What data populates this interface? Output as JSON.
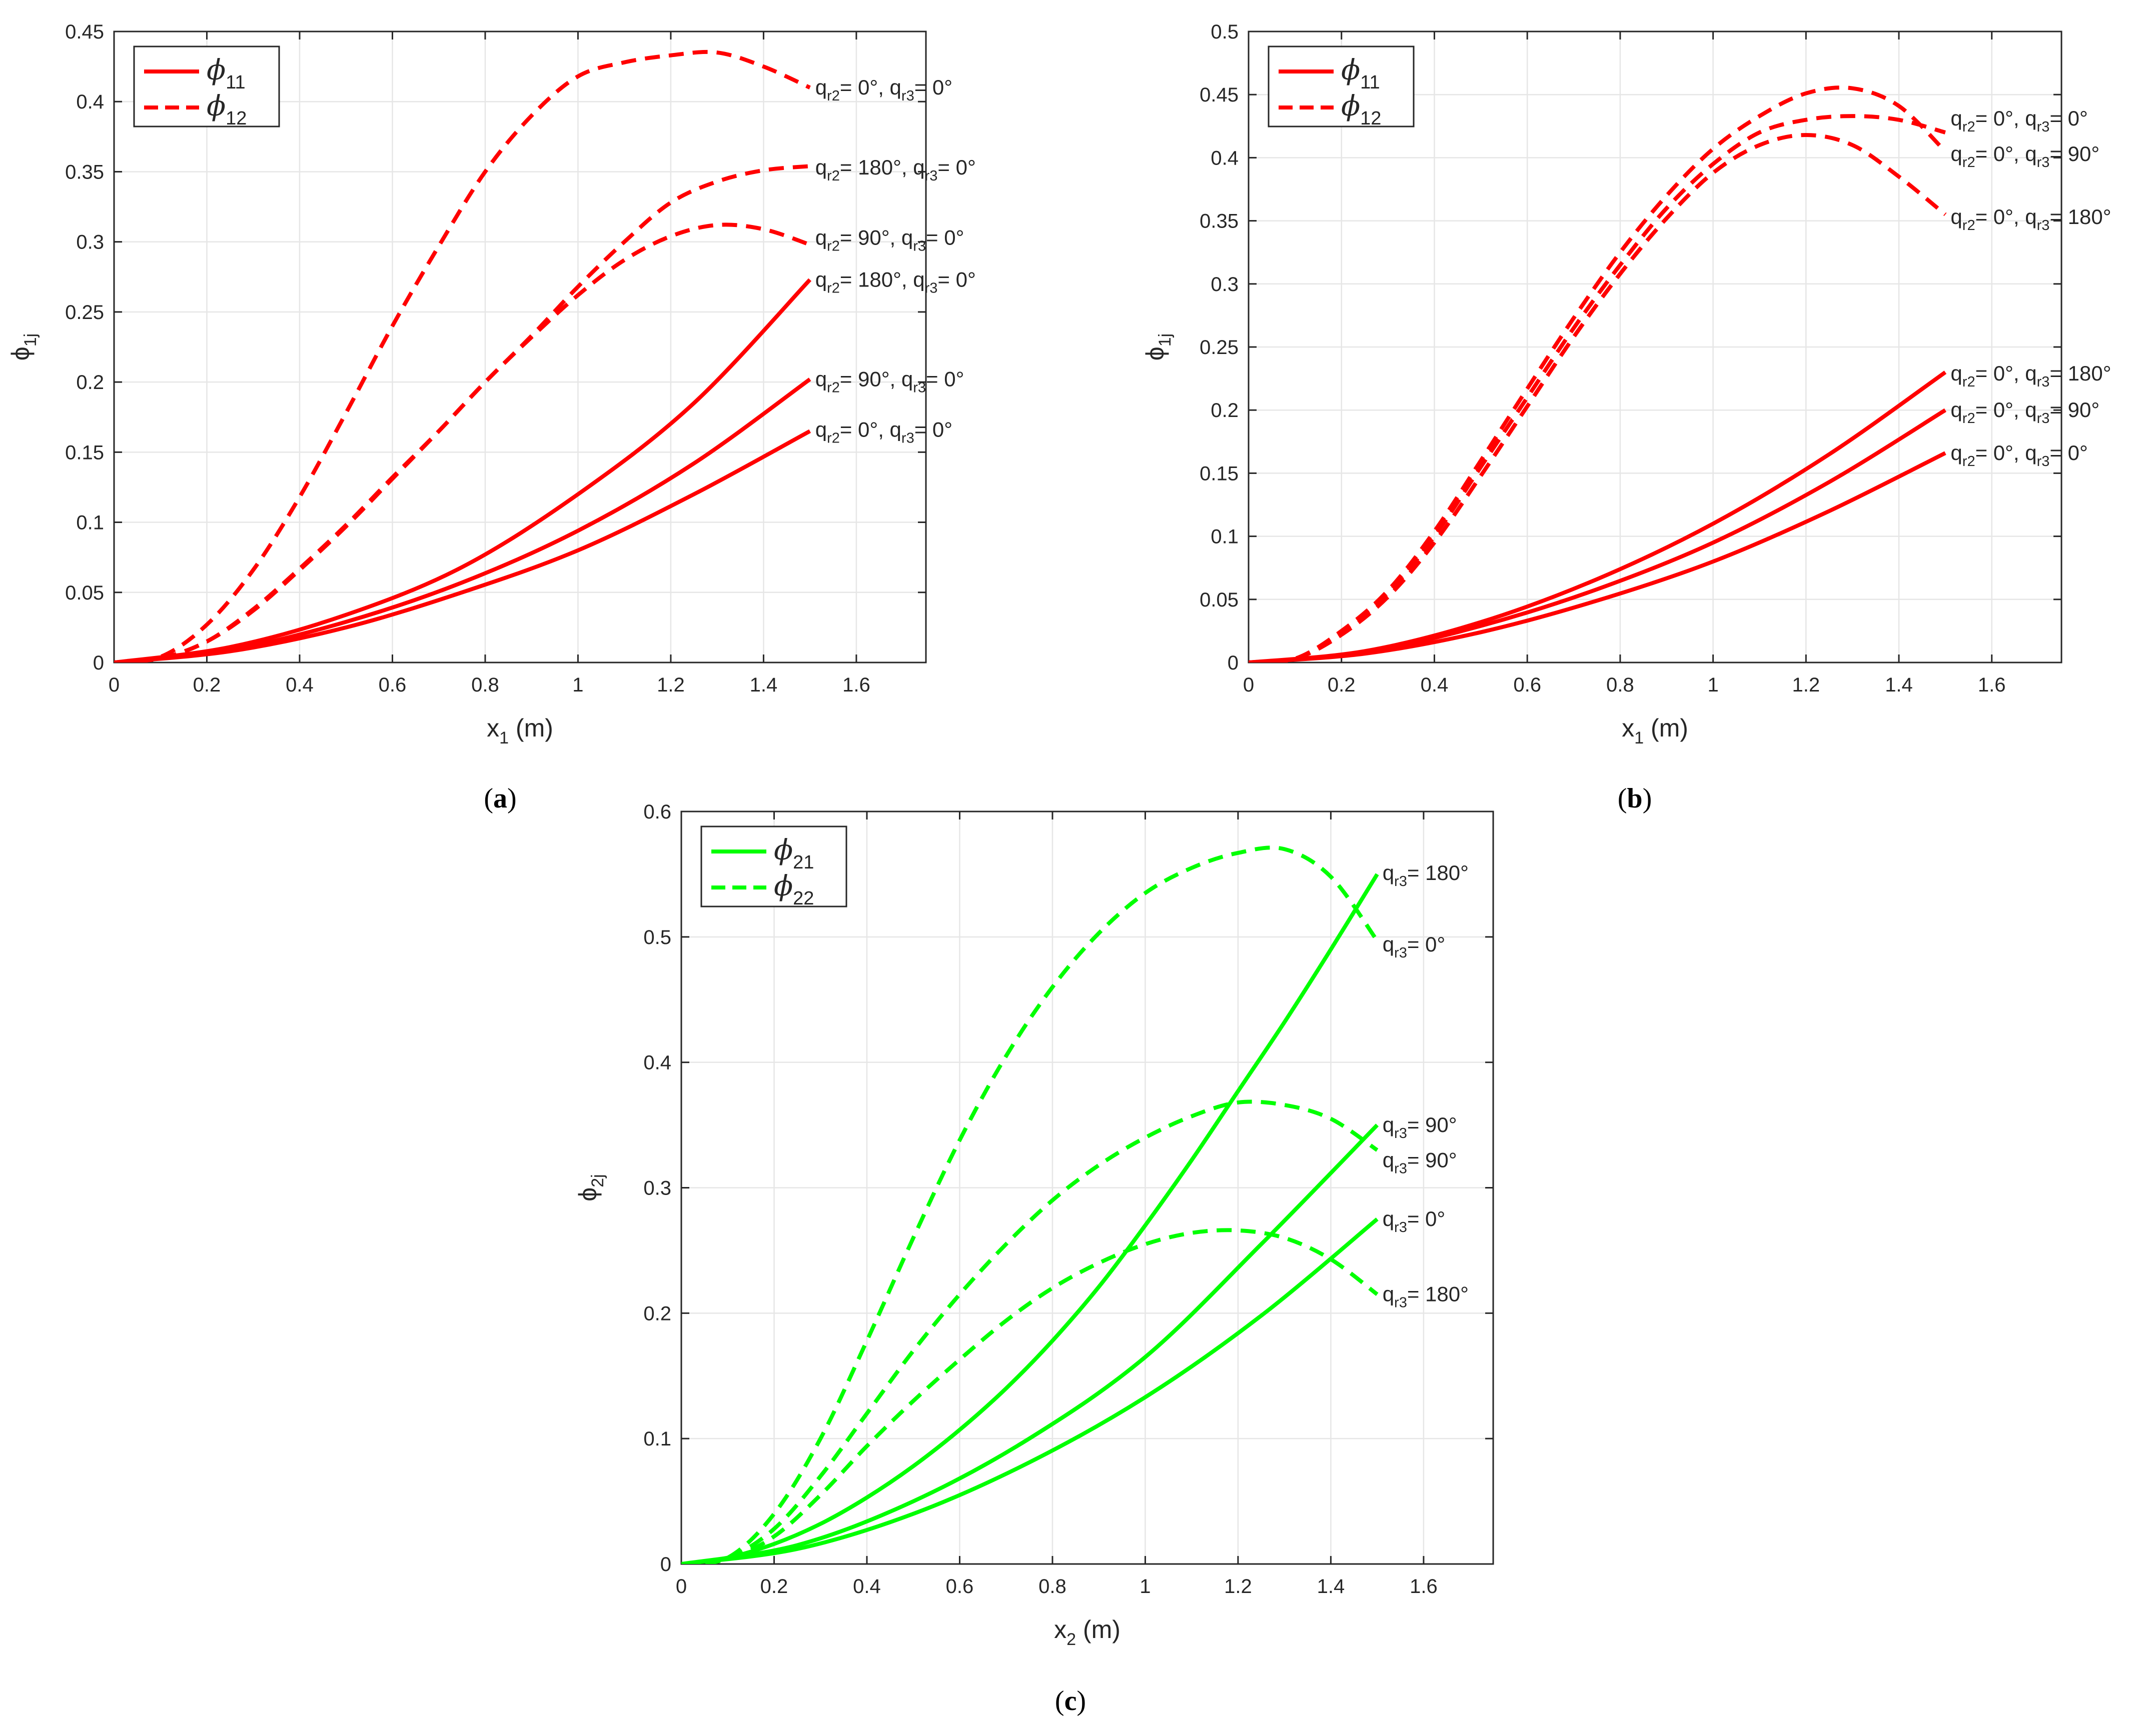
{
  "chart_data": [
    {
      "id": "a",
      "type": "line",
      "caption": "(a)",
      "xlabel": {
        "base": "x",
        "sub": "1",
        "unit": " (m)"
      },
      "ylabel": {
        "base": "ϕ",
        "sub": "1j"
      },
      "xlim": [
        0,
        1.75
      ],
      "ylim": [
        0,
        0.45
      ],
      "xticks": [
        0,
        0.2,
        0.4,
        0.6,
        0.8,
        1,
        1.2,
        1.4,
        1.6
      ],
      "xtick_labels": [
        "0",
        "0.2",
        "0.4",
        "0.6",
        "0.8",
        "1",
        "1.2",
        "1.4",
        "1.6"
      ],
      "yticks": [
        0,
        0.05,
        0.1,
        0.15,
        0.2,
        0.25,
        0.3,
        0.35,
        0.4,
        0.45
      ],
      "ytick_labels": [
        "0",
        "0.05",
        "0.1",
        "0.15",
        "0.2",
        "0.25",
        "0.3",
        "0.35",
        "0.4",
        "0.45"
      ],
      "grid": true,
      "color": "#ff0000",
      "legend": {
        "placement": "top-left",
        "entries": [
          {
            "symbol": "ϕ",
            "sub": "11",
            "style": "solid"
          },
          {
            "symbol": "ϕ",
            "sub": "12",
            "style": "dashed"
          }
        ]
      },
      "series": [
        {
          "name": "phi11 qr2=0, qr3=0",
          "style": "solid",
          "x": [
            0,
            0.25,
            0.5,
            0.75,
            1.0,
            1.25,
            1.5
          ],
          "y": [
            0,
            0.008,
            0.025,
            0.05,
            0.08,
            0.12,
            0.165
          ]
        },
        {
          "name": "phi11 qr2=90, qr3=0",
          "style": "solid",
          "x": [
            0,
            0.25,
            0.5,
            0.75,
            1.0,
            1.25,
            1.5
          ],
          "y": [
            0,
            0.009,
            0.029,
            0.057,
            0.094,
            0.142,
            0.202
          ]
        },
        {
          "name": "phi11 qr2=180, qr3=0",
          "style": "solid",
          "x": [
            0,
            0.25,
            0.5,
            0.75,
            1.0,
            1.25,
            1.5
          ],
          "y": [
            0,
            0.011,
            0.034,
            0.068,
            0.12,
            0.185,
            0.273
          ]
        },
        {
          "name": "phi12 qr2=0, qr3=0",
          "style": "dashed",
          "x": [
            0,
            0.1,
            0.2,
            0.3,
            0.4,
            0.5,
            0.6,
            0.7,
            0.8,
            0.9,
            1.0,
            1.1,
            1.2,
            1.3,
            1.4,
            1.5
          ],
          "y": [
            0,
            0.004,
            0.027,
            0.066,
            0.118,
            0.178,
            0.24,
            0.297,
            0.35,
            0.39,
            0.418,
            0.428,
            0.433,
            0.435,
            0.425,
            0.41
          ]
        },
        {
          "name": "phi12 qr2=180, qr3=0",
          "style": "dashed",
          "x": [
            0,
            0.1,
            0.2,
            0.3,
            0.4,
            0.5,
            0.6,
            0.7,
            0.8,
            0.9,
            1.0,
            1.1,
            1.2,
            1.3,
            1.4,
            1.5
          ],
          "y": [
            0,
            0.003,
            0.015,
            0.038,
            0.067,
            0.098,
            0.132,
            0.165,
            0.2,
            0.233,
            0.268,
            0.3,
            0.328,
            0.343,
            0.351,
            0.354
          ]
        },
        {
          "name": "phi12 qr2=90, qr3=0",
          "style": "dashed",
          "x": [
            0,
            0.1,
            0.2,
            0.3,
            0.4,
            0.5,
            0.6,
            0.7,
            0.8,
            0.9,
            1.0,
            1.1,
            1.2,
            1.3,
            1.4,
            1.5
          ],
          "y": [
            0,
            0.003,
            0.015,
            0.037,
            0.066,
            0.097,
            0.131,
            0.165,
            0.2,
            0.232,
            0.262,
            0.287,
            0.304,
            0.312,
            0.309,
            0.298
          ]
        }
      ],
      "annotations": [
        {
          "parts": [
            [
              "q",
              "r2",
              "= 0°, "
            ],
            [
              "q",
              "r3",
              "= 0°"
            ]
          ],
          "x": 1.52,
          "y": 0.41
        },
        {
          "parts": [
            [
              "q",
              "r2",
              "= 180°, "
            ],
            [
              "q",
              "r3",
              "= 0°"
            ]
          ],
          "x": 1.52,
          "y": 0.353
        },
        {
          "parts": [
            [
              "q",
              "r2",
              "= 90°, "
            ],
            [
              "q",
              "r3",
              "= 0°"
            ]
          ],
          "x": 1.52,
          "y": 0.303
        },
        {
          "parts": [
            [
              "q",
              "r2",
              "= 180°, "
            ],
            [
              "q",
              "r3",
              "= 0°"
            ]
          ],
          "x": 1.52,
          "y": 0.273
        },
        {
          "parts": [
            [
              "q",
              "r2",
              "= 90°, "
            ],
            [
              "q",
              "r3",
              "= 0°"
            ]
          ],
          "x": 1.52,
          "y": 0.202
        },
        {
          "parts": [
            [
              "q",
              "r2",
              "= 0°, "
            ],
            [
              "q",
              "r3",
              "= 0°"
            ]
          ],
          "x": 1.52,
          "y": 0.166
        }
      ]
    },
    {
      "id": "b",
      "type": "line",
      "caption": "(b)",
      "xlabel": {
        "base": "x",
        "sub": "1",
        "unit": " (m)"
      },
      "ylabel": {
        "base": "ϕ",
        "sub": "1j"
      },
      "xlim": [
        0,
        1.75
      ],
      "ylim": [
        0,
        0.5
      ],
      "xticks": [
        0,
        0.2,
        0.4,
        0.6,
        0.8,
        1,
        1.2,
        1.4,
        1.6
      ],
      "xtick_labels": [
        "0",
        "0.2",
        "0.4",
        "0.6",
        "0.8",
        "1",
        "1.2",
        "1.4",
        "1.6"
      ],
      "yticks": [
        0,
        0.05,
        0.1,
        0.15,
        0.2,
        0.25,
        0.3,
        0.35,
        0.4,
        0.45,
        0.5
      ],
      "ytick_labels": [
        "0",
        "0.05",
        "0.1",
        "0.15",
        "0.2",
        "0.25",
        "0.3",
        "0.35",
        "0.4",
        "0.45",
        "0.5"
      ],
      "grid": true,
      "color": "#ff0000",
      "legend": {
        "placement": "top-left",
        "entries": [
          {
            "symbol": "ϕ",
            "sub": "11",
            "style": "solid"
          },
          {
            "symbol": "ϕ",
            "sub": "12",
            "style": "dashed"
          }
        ]
      },
      "series": [
        {
          "name": "phi11 qr2=0, qr3=0",
          "style": "solid",
          "x": [
            0,
            0.25,
            0.5,
            0.75,
            1.0,
            1.25,
            1.5
          ],
          "y": [
            0,
            0.007,
            0.024,
            0.049,
            0.08,
            0.12,
            0.166
          ]
        },
        {
          "name": "phi11 qr2=0, qr3=90",
          "style": "solid",
          "x": [
            0,
            0.25,
            0.5,
            0.75,
            1.0,
            1.25,
            1.5
          ],
          "y": [
            0,
            0.008,
            0.029,
            0.058,
            0.095,
            0.143,
            0.2
          ]
        },
        {
          "name": "phi11 qr2=0, qr3=180",
          "style": "solid",
          "x": [
            0,
            0.25,
            0.5,
            0.75,
            1.0,
            1.25,
            1.5
          ],
          "y": [
            0,
            0.009,
            0.032,
            0.066,
            0.11,
            0.165,
            0.23
          ]
        },
        {
          "name": "phi12 qr2=0, qr3=0",
          "style": "dashed",
          "x": [
            0,
            0.1,
            0.2,
            0.3,
            0.4,
            0.5,
            0.6,
            0.7,
            0.8,
            0.9,
            1.0,
            1.1,
            1.2,
            1.3,
            1.4,
            1.5
          ],
          "y": [
            0,
            0.003,
            0.024,
            0.055,
            0.1,
            0.155,
            0.21,
            0.265,
            0.315,
            0.36,
            0.395,
            0.42,
            0.43,
            0.433,
            0.43,
            0.42
          ]
        },
        {
          "name": "phi12 qr2=0, qr3=90",
          "style": "dashed",
          "x": [
            0,
            0.1,
            0.2,
            0.3,
            0.4,
            0.5,
            0.6,
            0.7,
            0.8,
            0.9,
            1.0,
            1.1,
            1.2,
            1.3,
            1.4,
            1.5
          ],
          "y": [
            0,
            0.003,
            0.025,
            0.057,
            0.104,
            0.16,
            0.217,
            0.273,
            0.325,
            0.37,
            0.407,
            0.433,
            0.451,
            0.455,
            0.441,
            0.405
          ]
        },
        {
          "name": "phi12 qr2=0, qr3=180",
          "style": "dashed",
          "x": [
            0,
            0.1,
            0.2,
            0.3,
            0.4,
            0.5,
            0.6,
            0.7,
            0.8,
            0.9,
            1.0,
            1.1,
            1.2,
            1.3,
            1.4,
            1.5
          ],
          "y": [
            0,
            0.003,
            0.022,
            0.052,
            0.095,
            0.148,
            0.203,
            0.258,
            0.308,
            0.352,
            0.388,
            0.41,
            0.418,
            0.41,
            0.385,
            0.355
          ]
        }
      ],
      "annotations": [
        {
          "parts": [
            [
              "q",
              "r2",
              "= 0°, "
            ],
            [
              "q",
              "r3",
              "= 0°"
            ]
          ],
          "x": 1.52,
          "y": 0.431
        },
        {
          "parts": [
            [
              "q",
              "r2",
              "= 0°, "
            ],
            [
              "q",
              "r3",
              "= 90°"
            ]
          ],
          "x": 1.52,
          "y": 0.403
        },
        {
          "parts": [
            [
              "q",
              "r2",
              "= 0°, "
            ],
            [
              "q",
              "r3",
              "= 180°"
            ]
          ],
          "x": 1.52,
          "y": 0.353
        },
        {
          "parts": [
            [
              "q",
              "r2",
              "= 0°, "
            ],
            [
              "q",
              "r3",
              "= 180°"
            ]
          ],
          "x": 1.52,
          "y": 0.229
        },
        {
          "parts": [
            [
              "q",
              "r2",
              "= 0°, "
            ],
            [
              "q",
              "r3",
              "= 90°"
            ]
          ],
          "x": 1.52,
          "y": 0.2
        },
        {
          "parts": [
            [
              "q",
              "r2",
              "= 0°, "
            ],
            [
              "q",
              "r3",
              "= 0°"
            ]
          ],
          "x": 1.52,
          "y": 0.166
        }
      ]
    },
    {
      "id": "c",
      "type": "line",
      "caption": "(c)",
      "xlabel": {
        "base": "x",
        "sub": "2",
        "unit": " (m)"
      },
      "ylabel": {
        "base": "ϕ",
        "sub": "2j"
      },
      "xlim": [
        0,
        1.75
      ],
      "ylim": [
        0,
        0.6
      ],
      "xticks": [
        0,
        0.2,
        0.4,
        0.6,
        0.8,
        1,
        1.2,
        1.4,
        1.6
      ],
      "xtick_labels": [
        "0",
        "0.2",
        "0.4",
        "0.6",
        "0.8",
        "1",
        "1.2",
        "1.4",
        "1.6"
      ],
      "yticks": [
        0,
        0.1,
        0.2,
        0.3,
        0.4,
        0.5,
        0.6
      ],
      "ytick_labels": [
        "0",
        "0.1",
        "0.2",
        "0.3",
        "0.4",
        "0.5",
        "0.6"
      ],
      "grid": true,
      "color": "#00ff00",
      "legend": {
        "placement": "top-left",
        "entries": [
          {
            "symbol": "ϕ",
            "sub": "21",
            "style": "solid"
          },
          {
            "symbol": "ϕ",
            "sub": "22",
            "style": "dashed"
          }
        ]
      },
      "series": [
        {
          "name": "phi21 qr3=180",
          "style": "solid",
          "x": [
            0,
            0.1,
            0.2,
            0.3,
            0.4,
            0.5,
            0.6,
            0.7,
            0.8,
            0.9,
            1.0,
            1.1,
            1.2,
            1.3,
            1.4,
            1.5
          ],
          "y": [
            0,
            0.005,
            0.016,
            0.032,
            0.053,
            0.078,
            0.107,
            0.14,
            0.178,
            0.221,
            0.27,
            0.322,
            0.377,
            0.432,
            0.49,
            0.55
          ]
        },
        {
          "name": "phi21 qr3=90",
          "style": "solid",
          "x": [
            0,
            0.25,
            0.5,
            0.75,
            1.0,
            1.25,
            1.5
          ],
          "y": [
            0,
            0.015,
            0.05,
            0.1,
            0.165,
            0.255,
            0.35
          ]
        },
        {
          "name": "phi21 qr3=0",
          "style": "solid",
          "x": [
            0,
            0.25,
            0.5,
            0.75,
            1.0,
            1.25,
            1.5
          ],
          "y": [
            0,
            0.012,
            0.04,
            0.081,
            0.133,
            0.198,
            0.275
          ]
        },
        {
          "name": "phi22 qr3=0",
          "style": "dashed",
          "x": [
            0,
            0.1,
            0.2,
            0.3,
            0.4,
            0.5,
            0.6,
            0.7,
            0.8,
            0.9,
            1.0,
            1.1,
            1.2,
            1.3,
            1.4,
            1.5
          ],
          "y": [
            0,
            0.005,
            0.04,
            0.1,
            0.178,
            0.26,
            0.338,
            0.405,
            0.46,
            0.503,
            0.535,
            0.555,
            0.567,
            0.57,
            0.548,
            0.497
          ]
        },
        {
          "name": "phi22 qr3=90",
          "style": "dashed",
          "x": [
            0,
            0.1,
            0.2,
            0.3,
            0.4,
            0.5,
            0.6,
            0.7,
            0.8,
            0.9,
            1.0,
            1.1,
            1.2,
            1.3,
            1.4,
            1.5
          ],
          "y": [
            0,
            0.005,
            0.028,
            0.07,
            0.12,
            0.17,
            0.215,
            0.255,
            0.29,
            0.318,
            0.34,
            0.357,
            0.368,
            0.366,
            0.355,
            0.33
          ]
        },
        {
          "name": "phi22 qr3=180",
          "style": "dashed",
          "x": [
            0,
            0.1,
            0.2,
            0.3,
            0.4,
            0.5,
            0.6,
            0.7,
            0.8,
            0.9,
            1.0,
            1.1,
            1.2,
            1.3,
            1.4,
            1.5
          ],
          "y": [
            0,
            0.004,
            0.022,
            0.055,
            0.094,
            0.13,
            0.163,
            0.194,
            0.22,
            0.24,
            0.255,
            0.264,
            0.266,
            0.26,
            0.243,
            0.215
          ]
        }
      ],
      "annotations": [
        {
          "parts": [
            [
              "q",
              "r3",
              "= 180°"
            ]
          ],
          "x": 1.52,
          "y": 0.551
        },
        {
          "parts": [
            [
              "q",
              "r3",
              "= 0°"
            ]
          ],
          "x": 1.52,
          "y": 0.494
        },
        {
          "parts": [
            [
              "q",
              "r3",
              "= 90°"
            ]
          ],
          "x": 1.52,
          "y": 0.35
        },
        {
          "parts": [
            [
              "q",
              "r3",
              "= 90°"
            ]
          ],
          "x": 1.52,
          "y": 0.322
        },
        {
          "parts": [
            [
              "q",
              "r3",
              "= 0°"
            ]
          ],
          "x": 1.52,
          "y": 0.275
        },
        {
          "parts": [
            [
              "q",
              "r3",
              "= 180°"
            ]
          ],
          "x": 1.52,
          "y": 0.215
        }
      ]
    }
  ]
}
